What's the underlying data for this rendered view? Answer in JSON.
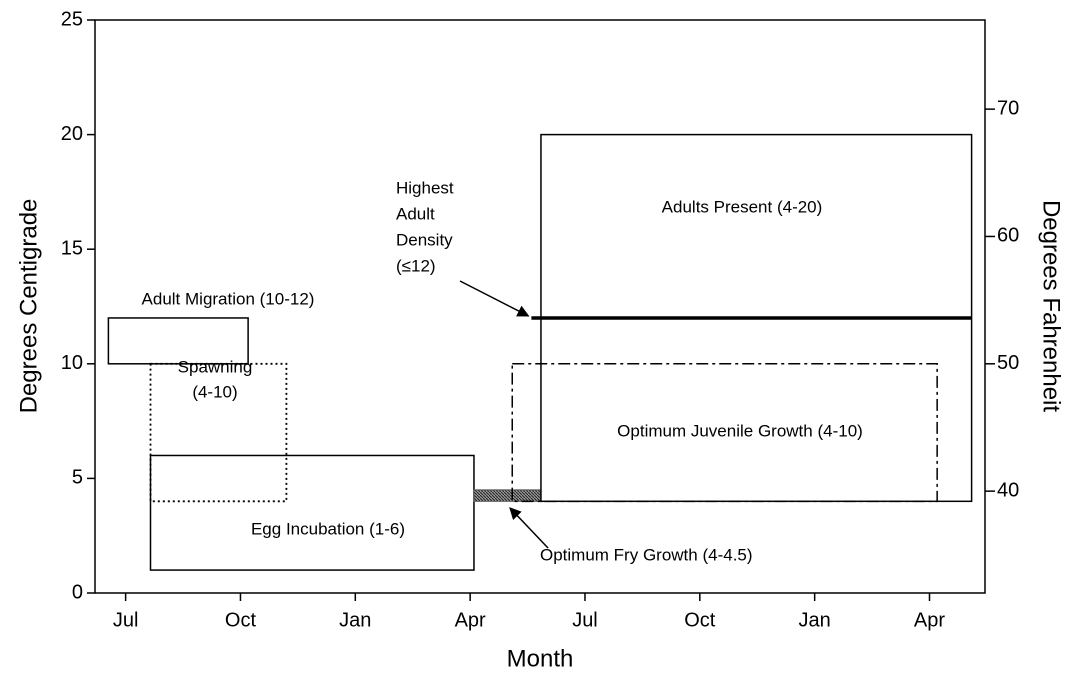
{
  "chart_data": {
    "type": "range",
    "ylabel": "Degrees Centigrade",
    "y2label": "Degrees Fahrenheit",
    "xlabel": "Month",
    "xlim": [
      -0.8,
      22.45
    ],
    "xticks": [
      {
        "value": 0,
        "label": "Jul"
      },
      {
        "value": 3,
        "label": "Oct"
      },
      {
        "value": 6,
        "label": "Jan"
      },
      {
        "value": 9,
        "label": "Apr"
      },
      {
        "value": 12,
        "label": "Jul"
      },
      {
        "value": 15,
        "label": "Oct"
      },
      {
        "value": 18,
        "label": "Jan"
      },
      {
        "value": 21,
        "label": "Apr"
      }
    ],
    "ylim": [
      0,
      25
    ],
    "yticks": [
      0,
      5,
      10,
      15,
      20,
      25
    ],
    "y2lim": [
      32,
      77
    ],
    "y2ticks": [
      40,
      50,
      60,
      70
    ],
    "color": "#000000",
    "ranges": [
      {
        "label": [
          "Adult Migration (10-12)"
        ],
        "x": [
          -0.45,
          3.2
        ],
        "y": [
          10,
          12
        ],
        "style": "solid"
      },
      {
        "label": [
          "Spawning",
          "(4-10)"
        ],
        "x": [
          0.65,
          4.2
        ],
        "y": [
          4,
          10
        ],
        "style": "dotted"
      },
      {
        "label": [
          "Egg Incubation (1-6)"
        ],
        "x": [
          0.65,
          9.1
        ],
        "y": [
          1,
          6
        ],
        "style": "solid"
      },
      {
        "label": [
          "Optimum Fry Growth (4-4.5)"
        ],
        "x": [
          9.1,
          10.85
        ],
        "y": [
          4,
          4.5
        ],
        "style": "hatched"
      },
      {
        "label": [
          "Optimum Juvenile Growth (4-10)"
        ],
        "x": [
          10.1,
          21.2
        ],
        "y": [
          4,
          10
        ],
        "style": "dashdot"
      },
      {
        "label": [
          "Adults Present (4-20)"
        ],
        "x": [
          10.85,
          22.1
        ],
        "y": [
          4,
          20
        ],
        "style": "solid"
      }
    ],
    "lines": [
      {
        "label": [
          "Highest",
          "Adult",
          "Density",
          "(≤12)"
        ],
        "x": [
          10.6,
          22.1
        ],
        "y": 12
      }
    ]
  }
}
